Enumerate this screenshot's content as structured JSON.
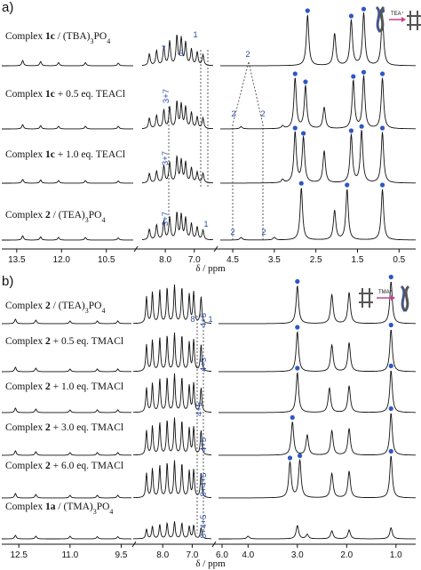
{
  "chart_data": [
    {
      "type": "line",
      "panel_label": "a)",
      "xlabel": "δ / ppm",
      "x_reversed": true,
      "x_ticks": [
        "13.5",
        "12.0",
        "10.5",
        "8.0",
        "7.0",
        "4.5",
        "3.5",
        "2.5",
        "1.5",
        "0.5"
      ],
      "series": [
        {
          "name": "Complex 1c / (TBA)3PO4",
          "prefix": "Complex ",
          "bold": "1c",
          "suffix": " / (TBA)",
          "sub": "3",
          "tail": "PO",
          "sub2": "4",
          "peaks": [
            [
              13.3,
              0.1
            ],
            [
              12.7,
              0.08
            ],
            [
              12.1,
              0.06
            ],
            [
              11.2,
              0.06
            ],
            [
              10.1,
              0.05
            ],
            [
              8.55,
              0.22
            ],
            [
              8.3,
              0.28
            ],
            [
              8.05,
              0.35
            ],
            [
              7.85,
              0.45
            ],
            [
              7.6,
              0.55
            ],
            [
              7.45,
              0.5
            ],
            [
              7.3,
              0.42
            ],
            [
              7.1,
              0.3
            ],
            [
              6.9,
              0.25
            ],
            [
              6.7,
              0.2
            ],
            [
              2.7,
              0.95
            ],
            [
              2.05,
              0.6
            ],
            [
              1.65,
              0.85
            ],
            [
              1.35,
              0.98
            ],
            [
              0.9,
              0.95
            ]
          ]
        },
        {
          "name": "Complex 1c + 0.5 eq. TEACl",
          "prefix": "Complex ",
          "bold": "1c",
          "suffix": " + 0.5 eq. TEACl",
          "sub": "",
          "tail": "",
          "sub2": "",
          "peaks": [
            [
              13.3,
              0.08
            ],
            [
              12.7,
              0.06
            ],
            [
              12.1,
              0.05
            ],
            [
              11.2,
              0.05
            ],
            [
              10.1,
              0.05
            ],
            [
              8.55,
              0.2
            ],
            [
              8.3,
              0.25
            ],
            [
              8.05,
              0.35
            ],
            [
              7.85,
              0.4
            ],
            [
              7.6,
              0.5
            ],
            [
              7.45,
              0.45
            ],
            [
              7.3,
              0.4
            ],
            [
              7.1,
              0.3
            ],
            [
              6.9,
              0.22
            ],
            [
              6.7,
              0.2
            ],
            [
              4.3,
              0.04
            ],
            [
              3.3,
              0.05
            ],
            [
              3.0,
              0.95
            ],
            [
              2.75,
              0.8
            ],
            [
              2.3,
              0.4
            ],
            [
              1.6,
              0.9
            ],
            [
              1.35,
              0.98
            ],
            [
              0.9,
              0.95
            ]
          ]
        },
        {
          "name": "Complex 1c + 1.0 eq. TEACl",
          "prefix": "Complex ",
          "bold": "1c",
          "suffix": " + 1.0 eq. TEACl",
          "sub": "",
          "tail": "",
          "sub2": "",
          "peaks": [
            [
              13.3,
              0.07
            ],
            [
              12.7,
              0.06
            ],
            [
              12.1,
              0.05
            ],
            [
              11.2,
              0.05
            ],
            [
              10.1,
              0.04
            ],
            [
              8.55,
              0.18
            ],
            [
              8.3,
              0.22
            ],
            [
              8.05,
              0.32
            ],
            [
              7.85,
              0.38
            ],
            [
              7.6,
              0.48
            ],
            [
              7.45,
              0.42
            ],
            [
              7.3,
              0.38
            ],
            [
              7.1,
              0.28
            ],
            [
              6.9,
              0.2
            ],
            [
              6.7,
              0.18
            ],
            [
              3.3,
              0.06
            ],
            [
              3.0,
              0.95
            ],
            [
              2.8,
              0.85
            ],
            [
              2.3,
              0.6
            ],
            [
              1.65,
              0.9
            ],
            [
              1.4,
              0.98
            ],
            [
              0.9,
              0.95
            ]
          ]
        },
        {
          "name": "Complex 2 / (TEA)3PO4",
          "prefix": "Complex ",
          "bold": "2",
          "suffix": " / (TEA)",
          "sub": "3",
          "tail": "PO",
          "sub2": "4",
          "peaks": [
            [
              13.3,
              0.08
            ],
            [
              12.7,
              0.06
            ],
            [
              12.1,
              0.05
            ],
            [
              11.2,
              0.05
            ],
            [
              10.1,
              0.04
            ],
            [
              8.55,
              0.2
            ],
            [
              8.3,
              0.28
            ],
            [
              8.05,
              0.35
            ],
            [
              7.85,
              0.42
            ],
            [
              7.6,
              0.5
            ],
            [
              7.45,
              0.46
            ],
            [
              7.3,
              0.4
            ],
            [
              7.1,
              0.3
            ],
            [
              6.9,
              0.24
            ],
            [
              6.7,
              0.18
            ],
            [
              4.3,
              0.05
            ],
            [
              3.5,
              0.05
            ],
            [
              2.85,
              0.98
            ],
            [
              2.05,
              0.55
            ],
            [
              1.75,
              0.95
            ],
            [
              0.9,
              0.95
            ]
          ]
        }
      ],
      "annotations": [
        "7",
        "3",
        "1",
        "2",
        "2",
        "2",
        "3+7",
        "3+7",
        "3+7",
        "1",
        "2",
        "2"
      ],
      "scheme_label": "TEA⁺"
    },
    {
      "type": "line",
      "panel_label": "b)",
      "xlabel": "δ / ppm",
      "x_reversed": true,
      "x_ticks": [
        "12.5",
        "11.0",
        "9.5",
        "8.0",
        "7.0",
        "6.0",
        "4.0",
        "3.0",
        "2.0",
        "1.0"
      ],
      "series": [
        {
          "name": "Complex 2 / (TEA)3PO4",
          "prefix": "Complex ",
          "bold": "2",
          "suffix": " / (TEA)",
          "sub": "3",
          "tail": "PO",
          "sub2": "4",
          "peaks": [
            [
              12.6,
              0.1
            ],
            [
              12.0,
              0.08
            ],
            [
              11.0,
              0.06
            ],
            [
              10.2,
              0.06
            ],
            [
              9.6,
              0.06
            ],
            [
              8.55,
              0.6
            ],
            [
              8.35,
              0.7
            ],
            [
              8.1,
              0.75
            ],
            [
              7.85,
              0.8
            ],
            [
              7.6,
              0.85
            ],
            [
              7.35,
              0.8
            ],
            [
              7.1,
              0.65
            ],
            [
              6.95,
              0.7
            ],
            [
              6.7,
              0.6
            ],
            [
              3.0,
              0.85
            ],
            [
              2.3,
              0.65
            ],
            [
              1.95,
              0.7
            ],
            [
              1.1,
              0.95
            ]
          ]
        },
        {
          "name": "Complex 2 + 0.5 eq. TMACl",
          "prefix": "Complex ",
          "bold": "2",
          "suffix": " + 0.5 eq. TMACl",
          "sub": "",
          "tail": "",
          "sub2": "",
          "peaks": [
            [
              12.6,
              0.1
            ],
            [
              12.0,
              0.08
            ],
            [
              11.0,
              0.06
            ],
            [
              10.2,
              0.06
            ],
            [
              9.6,
              0.06
            ],
            [
              8.55,
              0.6
            ],
            [
              8.35,
              0.7
            ],
            [
              8.1,
              0.75
            ],
            [
              7.85,
              0.8
            ],
            [
              7.6,
              0.85
            ],
            [
              7.35,
              0.8
            ],
            [
              7.1,
              0.65
            ],
            [
              6.95,
              0.7
            ],
            [
              6.7,
              0.6
            ],
            [
              3.0,
              0.9
            ],
            [
              2.3,
              0.6
            ],
            [
              1.95,
              0.65
            ],
            [
              1.1,
              0.95
            ]
          ]
        },
        {
          "name": "Complex 2 + 1.0 eq. TMACl",
          "prefix": "Complex ",
          "bold": "2",
          "suffix": " + 1.0 eq. TMACl",
          "sub": "",
          "tail": "",
          "sub2": "",
          "peaks": [
            [
              12.6,
              0.1
            ],
            [
              12.0,
              0.08
            ],
            [
              11.0,
              0.06
            ],
            [
              10.2,
              0.06
            ],
            [
              9.6,
              0.06
            ],
            [
              8.55,
              0.55
            ],
            [
              8.35,
              0.65
            ],
            [
              8.1,
              0.75
            ],
            [
              7.85,
              0.78
            ],
            [
              7.6,
              0.85
            ],
            [
              7.35,
              0.78
            ],
            [
              7.1,
              0.6
            ],
            [
              6.95,
              0.65
            ],
            [
              6.7,
              0.55
            ],
            [
              3.0,
              0.9
            ],
            [
              2.35,
              0.55
            ],
            [
              1.95,
              0.6
            ],
            [
              1.1,
              0.95
            ]
          ]
        },
        {
          "name": "Complex 2 + 3.0 eq. TMACl",
          "prefix": "Complex ",
          "bold": "2",
          "suffix": " + 3.0 eq. TMACl",
          "sub": "",
          "tail": "",
          "sub2": "",
          "peaks": [
            [
              12.6,
              0.1
            ],
            [
              12.0,
              0.08
            ],
            [
              11.0,
              0.06
            ],
            [
              10.2,
              0.06
            ],
            [
              9.6,
              0.06
            ],
            [
              8.55,
              0.55
            ],
            [
              8.35,
              0.65
            ],
            [
              8.1,
              0.72
            ],
            [
              7.85,
              0.78
            ],
            [
              7.6,
              0.82
            ],
            [
              7.35,
              0.76
            ],
            [
              7.1,
              0.6
            ],
            [
              6.95,
              0.62
            ],
            [
              6.7,
              0.55
            ],
            [
              3.1,
              0.75
            ],
            [
              2.8,
              0.45
            ],
            [
              2.3,
              0.55
            ],
            [
              1.95,
              0.6
            ],
            [
              1.1,
              0.95
            ]
          ]
        },
        {
          "name": "Complex 2 + 6.0 eq. TMACl",
          "prefix": "Complex ",
          "bold": "2",
          "suffix": " + 6.0 eq. TMACl",
          "sub": "",
          "tail": "",
          "sub2": "",
          "peaks": [
            [
              12.6,
              0.1
            ],
            [
              12.0,
              0.08
            ],
            [
              11.0,
              0.06
            ],
            [
              10.2,
              0.06
            ],
            [
              9.6,
              0.06
            ],
            [
              8.55,
              0.55
            ],
            [
              8.35,
              0.65
            ],
            [
              8.1,
              0.72
            ],
            [
              7.85,
              0.78
            ],
            [
              7.6,
              0.82
            ],
            [
              7.35,
              0.76
            ],
            [
              7.1,
              0.6
            ],
            [
              6.95,
              0.62
            ],
            [
              6.7,
              0.55
            ],
            [
              3.15,
              0.8
            ],
            [
              2.95,
              0.85
            ],
            [
              2.3,
              0.55
            ],
            [
              1.95,
              0.6
            ],
            [
              1.1,
              0.95
            ]
          ]
        },
        {
          "name": "Complex 1a / (TMA)3PO4",
          "prefix": "Complex ",
          "bold": "1a",
          "suffix": " / (TMA)",
          "sub": "3",
          "tail": "PO",
          "sub2": "4",
          "peaks": [
            [
              12.6,
              0.08
            ],
            [
              12.0,
              0.06
            ],
            [
              11.0,
              0.06
            ],
            [
              10.2,
              0.05
            ],
            [
              9.6,
              0.05
            ],
            [
              8.55,
              0.22
            ],
            [
              8.35,
              0.28
            ],
            [
              8.1,
              0.32
            ],
            [
              7.85,
              0.35
            ],
            [
              7.6,
              0.38
            ],
            [
              7.35,
              0.35
            ],
            [
              7.1,
              0.28
            ],
            [
              6.95,
              0.3
            ],
            [
              6.7,
              0.25
            ],
            [
              4.0,
              0.06
            ],
            [
              3.0,
              0.3
            ],
            [
              2.8,
              0.1
            ],
            [
              2.3,
              0.18
            ],
            [
              1.95,
              0.2
            ],
            [
              1.1,
              0.25
            ]
          ]
        }
      ],
      "annotations": [
        "4+5",
        "8",
        "1",
        "4+5",
        "4+5",
        "4+5",
        "8+4+5",
        "8+4+5"
      ],
      "scheme_label": "TMA⁺"
    }
  ],
  "colors": {
    "spectrum": "#111111",
    "highlight": "#d23a3a",
    "annotation": "#2b4fa8",
    "marker_circle": "#2f57c4",
    "marker_square": "#2f57c4"
  }
}
